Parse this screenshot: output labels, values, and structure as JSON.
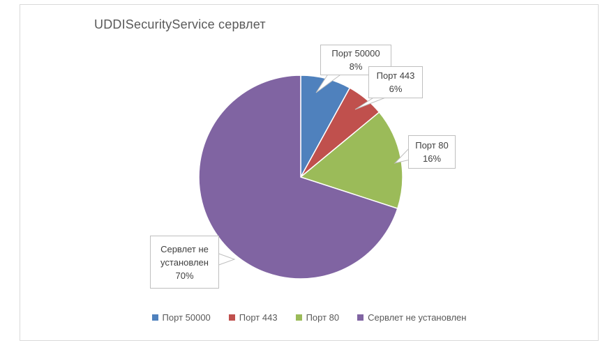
{
  "chart_data": {
    "type": "pie",
    "title": "UDDISecurityService сервлет",
    "start_angle_deg": 0,
    "direction": "clockwise",
    "legend_position": "bottom",
    "data_labels": "category_and_percent_callouts",
    "slices": [
      {
        "label": "Порт 50000",
        "value": 8,
        "pct": "8%",
        "color": "#4F81BD"
      },
      {
        "label": "Порт 443",
        "value": 6,
        "pct": "6%",
        "color": "#C0504D"
      },
      {
        "label": "Порт 80",
        "value": 16,
        "pct": "16%",
        "color": "#9BBB59"
      },
      {
        "label": "Сервлет не установлен",
        "value": 70,
        "pct": "70%",
        "color": "#8064A2"
      }
    ]
  }
}
